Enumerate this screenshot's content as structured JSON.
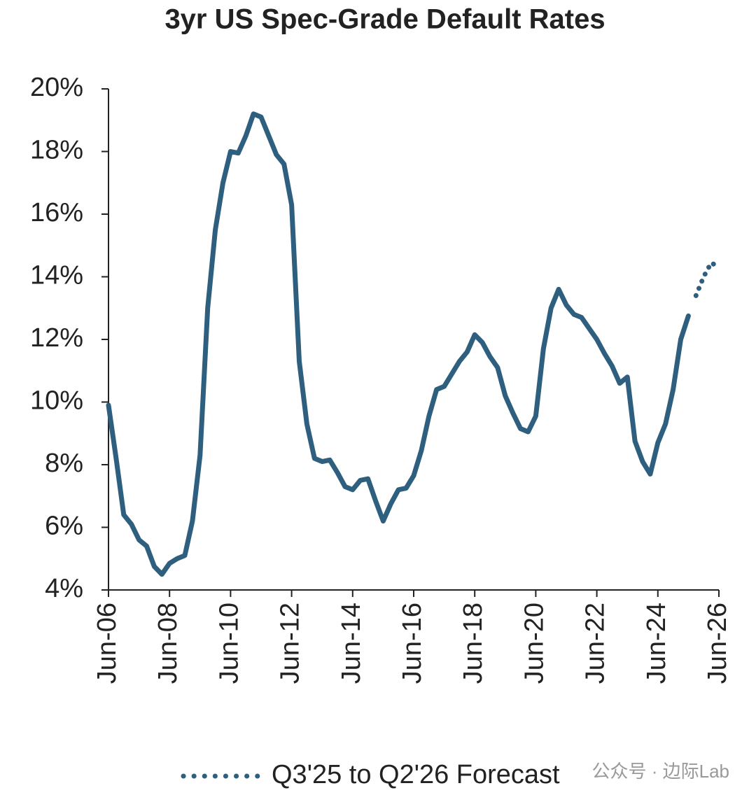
{
  "chart_data": {
    "type": "line",
    "title": "3yr US Spec-Grade Default Rates",
    "categories": [
      "Jun-06",
      null,
      null,
      null,
      null,
      null,
      null,
      null,
      "Jun-08",
      null,
      null,
      null,
      null,
      null,
      null,
      null,
      "Jun-10",
      null,
      null,
      null,
      null,
      null,
      null,
      null,
      "Jun-12",
      null,
      null,
      null,
      null,
      null,
      null,
      null,
      "Jun-14",
      null,
      null,
      null,
      null,
      null,
      null,
      null,
      "Jun-16",
      null,
      null,
      null,
      null,
      null,
      null,
      null,
      "Jun-18",
      null,
      null,
      null,
      null,
      null,
      null,
      null,
      "Jun-20",
      null,
      null,
      null,
      null,
      null,
      null,
      null,
      "Jun-22",
      null,
      null,
      null,
      null,
      null,
      null,
      null,
      "Jun-24",
      null,
      null,
      null,
      null,
      null,
      null,
      null,
      "Jun-26"
    ],
    "series": [
      {
        "color": "#2f5f7f",
        "values": [
          9.9,
          8.2,
          6.4,
          6.1,
          5.6,
          5.4,
          4.75,
          4.5,
          4.85,
          5.0,
          5.1,
          6.2,
          8.3,
          13.0,
          15.5,
          17.0,
          18.0,
          17.95,
          18.5,
          19.2,
          19.1,
          18.5,
          17.9,
          17.6,
          16.3,
          11.3,
          9.3,
          8.2,
          8.1,
          8.15,
          7.75,
          7.3,
          7.2,
          7.5,
          7.55,
          6.85,
          6.2,
          6.75,
          7.2,
          7.25,
          7.65,
          8.45,
          9.55,
          10.4,
          10.5,
          10.9,
          11.3,
          11.6,
          12.15,
          11.9,
          11.45,
          11.1,
          10.2,
          9.65,
          9.15,
          9.05,
          9.55,
          11.7,
          13.0,
          13.6,
          13.1,
          12.8,
          12.7,
          12.35,
          12.0,
          11.55,
          11.15,
          10.6,
          10.8,
          8.75,
          8.1,
          7.7,
          8.7,
          9.3,
          10.4,
          12.0,
          12.75,
          null,
          null,
          null,
          null
        ]
      },
      {
        "name": "Q3'25 to Q2'26 Forecast",
        "color": "#2f5f7f",
        "dashed": true,
        "values": [
          null,
          null,
          null,
          null,
          null,
          null,
          null,
          null,
          null,
          null,
          null,
          null,
          null,
          null,
          null,
          null,
          null,
          null,
          null,
          null,
          null,
          null,
          null,
          null,
          null,
          null,
          null,
          null,
          null,
          null,
          null,
          null,
          null,
          null,
          null,
          null,
          null,
          null,
          null,
          null,
          null,
          null,
          null,
          null,
          null,
          null,
          null,
          null,
          null,
          null,
          null,
          null,
          null,
          null,
          null,
          null,
          null,
          null,
          null,
          null,
          null,
          null,
          null,
          null,
          null,
          null,
          null,
          null,
          null,
          null,
          null,
          null,
          null,
          null,
          null,
          null,
          null,
          13.4,
          14.0,
          14.45,
          14.3
        ]
      }
    ],
    "ylim": [
      4,
      20
    ],
    "yticks": [
      {
        "value": 4,
        "label": "4%"
      },
      {
        "value": 6,
        "label": "6%"
      },
      {
        "value": 8,
        "label": "8%"
      },
      {
        "value": 10,
        "label": "10%"
      },
      {
        "value": 12,
        "label": "12%"
      },
      {
        "value": 14,
        "label": "14%"
      },
      {
        "value": 16,
        "label": "16%"
      },
      {
        "value": 18,
        "label": "18%"
      },
      {
        "value": 20,
        "label": "20%"
      }
    ],
    "grid": false,
    "legend": "bottom",
    "watermark": "公众号 · 边际Lab"
  }
}
